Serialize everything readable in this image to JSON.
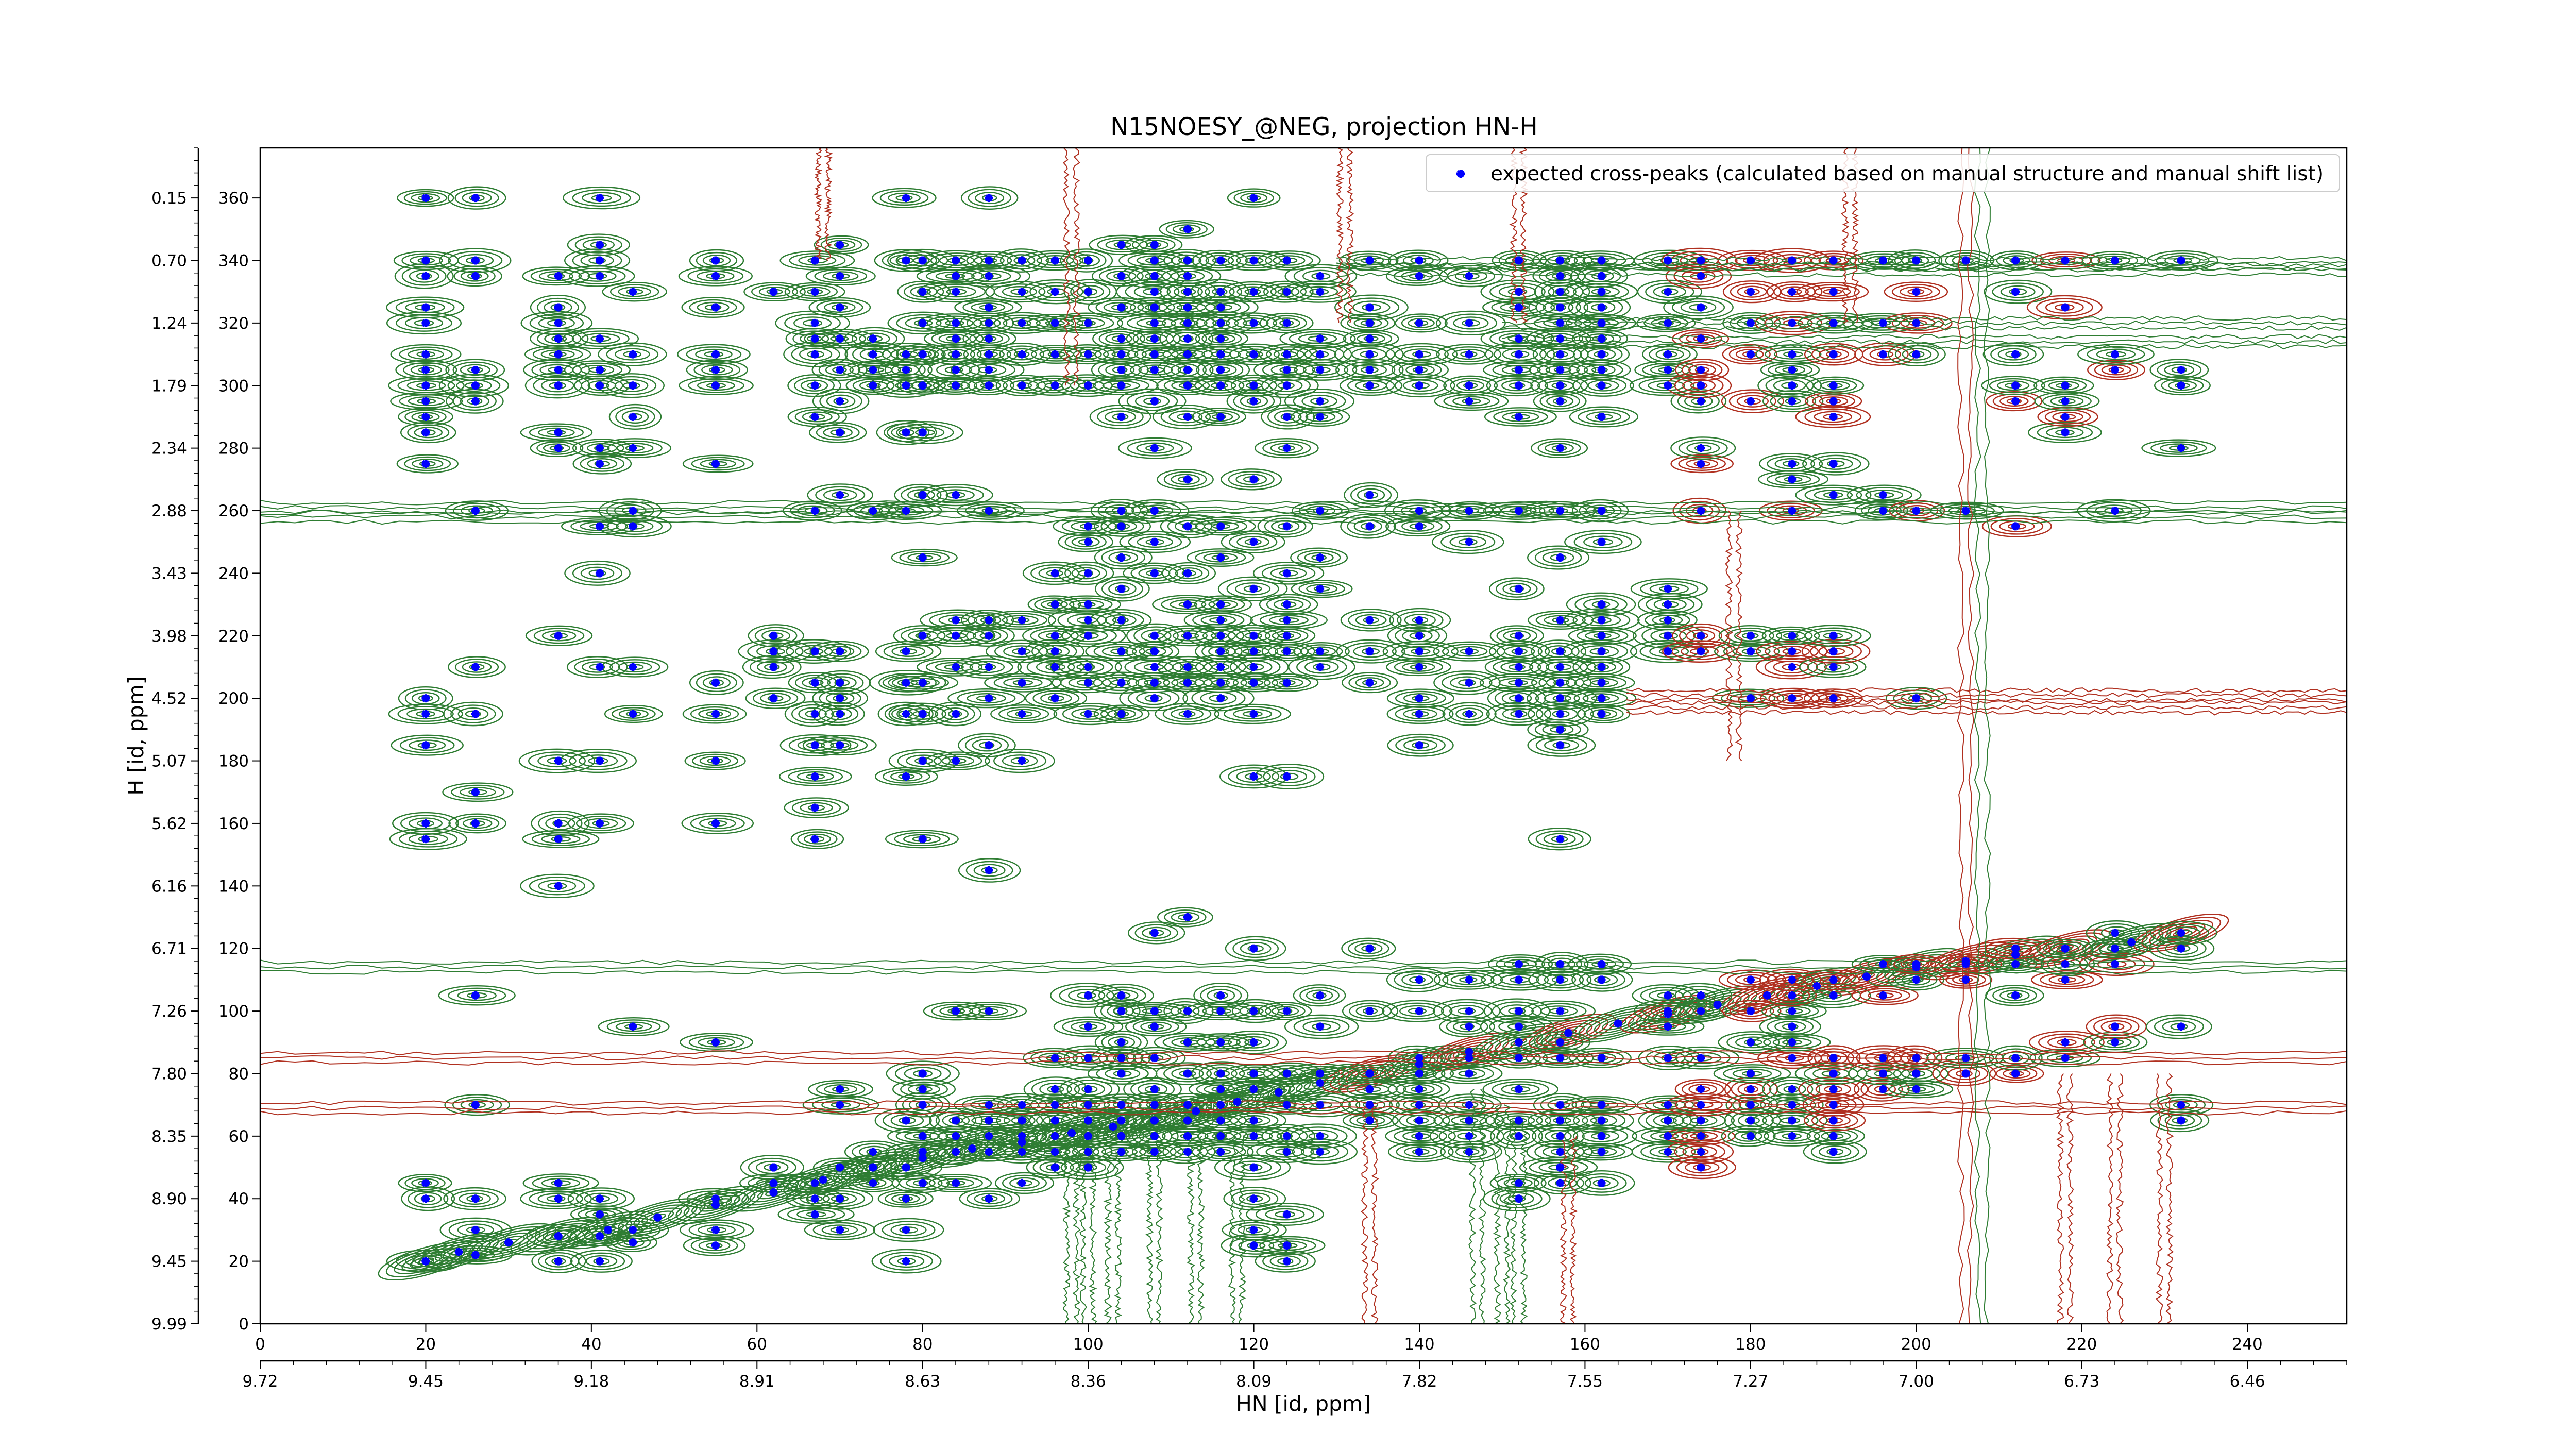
{
  "chart_data": {
    "type": "scatter",
    "title": "N15NOESY_@NEG, projection HN-H",
    "xlabel": "HN [id, ppm]",
    "ylabel": "H [id, ppm]",
    "x_index_ticks": [
      "0",
      "20",
      "40",
      "60",
      "80",
      "100",
      "120",
      "140",
      "160",
      "180",
      "200",
      "220",
      "240"
    ],
    "x_ppm_ticks": [
      "9.72",
      "9.45",
      "9.18",
      "8.91",
      "8.63",
      "8.36",
      "8.09",
      "7.82",
      "7.55",
      "7.27",
      "7.00",
      "6.73",
      "6.46"
    ],
    "y_index_ticks": [
      "0",
      "20",
      "40",
      "60",
      "80",
      "100",
      "120",
      "140",
      "160",
      "180",
      "200",
      "220",
      "240",
      "260",
      "280",
      "300",
      "320",
      "340",
      "360"
    ],
    "y_ppm_ticks": [
      "9.99",
      "9.45",
      "8.90",
      "8.35",
      "7.80",
      "7.26",
      "6.71",
      "6.16",
      "5.62",
      "5.07",
      "4.52",
      "3.98",
      "3.43",
      "2.88",
      "2.34",
      "1.79",
      "1.24",
      "0.70",
      "0.15"
    ],
    "xlim": [
      0,
      252
    ],
    "ylim": [
      0,
      376
    ],
    "legend": {
      "label": "expected cross-peaks (calculated based on manual structure and manual shift list)",
      "placement": "top-right",
      "marker_color": "#0000ff"
    },
    "colors": {
      "positive_contours": "#2e7d32",
      "negative_contours": "#b03020",
      "peaks": "#0000ff"
    },
    "diagonal_peaks": [
      [
        20,
        20
      ],
      [
        24,
        23
      ],
      [
        30,
        26
      ],
      [
        36,
        28
      ],
      [
        42,
        30
      ],
      [
        48,
        34
      ],
      [
        55,
        38
      ],
      [
        62,
        42
      ],
      [
        68,
        46
      ],
      [
        74,
        50
      ],
      [
        80,
        53
      ],
      [
        86,
        56
      ],
      [
        92,
        58
      ],
      [
        98,
        61
      ],
      [
        103,
        63
      ],
      [
        108,
        65
      ],
      [
        113,
        68
      ],
      [
        118,
        71
      ],
      [
        123,
        74
      ],
      [
        128,
        77
      ],
      [
        134,
        80
      ],
      [
        140,
        83
      ],
      [
        146,
        87
      ],
      [
        152,
        90
      ],
      [
        158,
        93
      ],
      [
        164,
        96
      ],
      [
        170,
        99
      ],
      [
        176,
        102
      ],
      [
        182,
        105
      ],
      [
        188,
        108
      ],
      [
        194,
        111
      ],
      [
        200,
        114
      ],
      [
        206,
        116
      ],
      [
        212,
        118
      ],
      [
        218,
        120
      ],
      [
        226,
        122
      ],
      [
        232,
        125
      ]
    ],
    "columns": [
      {
        "x": 20,
        "y": [
          20,
          40,
          45,
          155,
          160,
          185,
          195,
          200,
          275,
          285,
          290,
          295,
          300,
          305,
          310,
          320,
          325,
          335,
          340,
          360
        ]
      },
      {
        "x": 26,
        "y": [
          22,
          30,
          40,
          70,
          105,
          160,
          170,
          195,
          210,
          260,
          295,
          300,
          305,
          335,
          340,
          360
        ]
      },
      {
        "x": 36,
        "y": [
          20,
          28,
          40,
          45,
          140,
          155,
          160,
          180,
          220,
          280,
          285,
          300,
          305,
          310,
          315,
          320,
          325,
          335
        ]
      },
      {
        "x": 41,
        "y": [
          20,
          28,
          35,
          40,
          160,
          180,
          210,
          240,
          255,
          275,
          280,
          300,
          305,
          315,
          335,
          340,
          345,
          360
        ]
      },
      {
        "x": 45,
        "y": [
          26,
          30,
          95,
          195,
          210,
          255,
          260,
          280,
          290,
          300,
          310,
          330
        ]
      },
      {
        "x": 55,
        "y": [
          25,
          30,
          40,
          90,
          160,
          180,
          195,
          205,
          275,
          300,
          305,
          310,
          325,
          335,
          340
        ]
      },
      {
        "x": 62,
        "y": [
          45,
          50,
          200,
          210,
          215,
          220,
          330
        ]
      },
      {
        "x": 67,
        "y": [
          35,
          40,
          45,
          155,
          165,
          175,
          185,
          195,
          205,
          215,
          260,
          290,
          300,
          310,
          315,
          320,
          330,
          340
        ]
      },
      {
        "x": 70,
        "y": [
          30,
          40,
          50,
          70,
          75,
          185,
          195,
          200,
          205,
          215,
          265,
          285,
          295,
          305,
          315,
          325,
          335,
          345
        ]
      },
      {
        "x": 74,
        "y": [
          45,
          50,
          55,
          260,
          300,
          305,
          310,
          315
        ]
      },
      {
        "x": 78,
        "y": [
          20,
          30,
          40,
          50,
          65,
          175,
          195,
          205,
          215,
          260,
          285,
          300,
          305,
          310,
          340,
          360
        ]
      },
      {
        "x": 80,
        "y": [
          45,
          55,
          60,
          70,
          75,
          80,
          155,
          180,
          195,
          205,
          220,
          245,
          265,
          285,
          300,
          310,
          320,
          330,
          340
        ]
      },
      {
        "x": 84,
        "y": [
          45,
          55,
          60,
          65,
          100,
          180,
          195,
          210,
          220,
          225,
          265,
          300,
          305,
          310,
          315,
          320,
          330,
          335,
          340
        ]
      },
      {
        "x": 88,
        "y": [
          40,
          55,
          60,
          65,
          70,
          100,
          145,
          185,
          200,
          210,
          220,
          225,
          260,
          300,
          305,
          310,
          315,
          320,
          325,
          335,
          340,
          360
        ]
      },
      {
        "x": 92,
        "y": [
          45,
          55,
          60,
          65,
          70,
          180,
          195,
          205,
          215,
          225,
          300,
          310,
          320,
          330,
          340
        ]
      },
      {
        "x": 96,
        "y": [
          50,
          55,
          60,
          65,
          70,
          75,
          85,
          200,
          210,
          215,
          220,
          230,
          240,
          300,
          310,
          320,
          330,
          340
        ]
      },
      {
        "x": 100,
        "y": [
          50,
          55,
          60,
          65,
          70,
          75,
          85,
          95,
          105,
          195,
          205,
          210,
          220,
          225,
          230,
          240,
          250,
          255,
          300,
          310,
          320,
          330,
          340
        ]
      },
      {
        "x": 104,
        "y": [
          55,
          60,
          65,
          70,
          80,
          85,
          90,
          100,
          105,
          195,
          205,
          215,
          225,
          235,
          245,
          255,
          260,
          290,
          300,
          305,
          310,
          315,
          325,
          335,
          345
        ]
      },
      {
        "x": 108,
        "y": [
          55,
          60,
          65,
          70,
          75,
          85,
          95,
          100,
          125,
          200,
          205,
          210,
          215,
          220,
          240,
          250,
          260,
          280,
          295,
          305,
          310,
          315,
          320,
          325,
          330,
          335,
          340,
          345
        ]
      },
      {
        "x": 112,
        "y": [
          55,
          60,
          65,
          70,
          80,
          90,
          100,
          130,
          195,
          205,
          210,
          220,
          230,
          240,
          255,
          270,
          290,
          300,
          305,
          310,
          315,
          320,
          325,
          330,
          335,
          340,
          350
        ]
      },
      {
        "x": 116,
        "y": [
          55,
          60,
          65,
          70,
          75,
          80,
          90,
          100,
          105,
          200,
          205,
          210,
          215,
          220,
          225,
          230,
          245,
          255,
          290,
          300,
          305,
          310,
          315,
          320,
          325,
          330,
          340
        ]
      },
      {
        "x": 120,
        "y": [
          25,
          30,
          40,
          50,
          60,
          65,
          75,
          80,
          90,
          100,
          120,
          175,
          195,
          205,
          210,
          215,
          220,
          235,
          250,
          270,
          295,
          300,
          310,
          320,
          330,
          340,
          360
        ]
      },
      {
        "x": 124,
        "y": [
          20,
          25,
          35,
          55,
          60,
          70,
          80,
          100,
          175,
          205,
          215,
          220,
          225,
          230,
          240,
          255,
          280,
          290,
          300,
          305,
          310,
          320,
          330,
          340
        ]
      },
      {
        "x": 128,
        "y": [
          55,
          60,
          70,
          80,
          95,
          105,
          210,
          215,
          235,
          245,
          260,
          290,
          295,
          305,
          310,
          315,
          330,
          335
        ]
      },
      {
        "x": 134,
        "y": [
          65,
          70,
          75,
          80,
          100,
          120,
          205,
          215,
          225,
          255,
          265,
          300,
          305,
          310,
          315,
          320,
          325,
          340
        ]
      },
      {
        "x": 140,
        "y": [
          55,
          60,
          65,
          70,
          75,
          80,
          85,
          100,
          110,
          185,
          195,
          200,
          210,
          215,
          220,
          225,
          255,
          260,
          300,
          305,
          310,
          320,
          335,
          340
        ]
      },
      {
        "x": 146,
        "y": [
          55,
          60,
          65,
          70,
          80,
          85,
          95,
          100,
          110,
          195,
          205,
          215,
          250,
          260,
          295,
          300,
          310,
          320,
          335
        ]
      },
      {
        "x": 152,
        "y": [
          40,
          45,
          60,
          65,
          75,
          85,
          95,
          100,
          110,
          115,
          195,
          200,
          205,
          210,
          215,
          220,
          235,
          260,
          290,
          300,
          305,
          310,
          315,
          325,
          330,
          340
        ]
      },
      {
        "x": 157,
        "y": [
          45,
          50,
          55,
          60,
          65,
          70,
          85,
          90,
          100,
          110,
          115,
          155,
          185,
          190,
          195,
          200,
          205,
          210,
          215,
          225,
          245,
          260,
          280,
          295,
          300,
          305,
          310,
          315,
          320,
          325,
          330,
          335,
          340
        ]
      },
      {
        "x": 162,
        "y": [
          45,
          55,
          60,
          65,
          70,
          85,
          110,
          115,
          195,
          200,
          205,
          210,
          215,
          220,
          225,
          230,
          250,
          260,
          290,
          300,
          305,
          310,
          315,
          320,
          325,
          330,
          335,
          340
        ]
      },
      {
        "x": 170,
        "y": [
          55,
          60,
          65,
          70,
          85,
          95,
          100,
          105,
          215,
          220,
          225,
          230,
          235,
          300,
          305,
          310,
          320,
          330,
          340
        ]
      },
      {
        "x": 174,
        "y": [
          50,
          55,
          60,
          65,
          70,
          75,
          85,
          100,
          105,
          215,
          220,
          260,
          275,
          280,
          295,
          300,
          305,
          315,
          325,
          335,
          340
        ]
      },
      {
        "x": 180,
        "y": [
          60,
          65,
          70,
          75,
          80,
          90,
          100,
          110,
          200,
          215,
          220,
          295,
          310,
          320,
          330,
          340
        ]
      },
      {
        "x": 185,
        "y": [
          60,
          65,
          70,
          75,
          85,
          90,
          95,
          100,
          105,
          110,
          200,
          210,
          215,
          220,
          260,
          270,
          275,
          295,
          300,
          305,
          310,
          320,
          330,
          340
        ]
      },
      {
        "x": 190,
        "y": [
          55,
          60,
          65,
          70,
          75,
          80,
          85,
          105,
          110,
          200,
          210,
          215,
          220,
          265,
          275,
          290,
          295,
          300,
          310,
          320,
          330,
          340
        ]
      },
      {
        "x": 196,
        "y": [
          75,
          80,
          85,
          105,
          115,
          260,
          265,
          310,
          320,
          340
        ]
      },
      {
        "x": 200,
        "y": [
          75,
          80,
          85,
          110,
          115,
          200,
          260,
          310,
          320,
          330,
          340
        ]
      },
      {
        "x": 206,
        "y": [
          80,
          85,
          110,
          115,
          260,
          340
        ]
      },
      {
        "x": 212,
        "y": [
          80,
          85,
          105,
          115,
          120,
          255,
          295,
          300,
          310,
          330,
          340
        ]
      },
      {
        "x": 218,
        "y": [
          85,
          90,
          110,
          115,
          120,
          285,
          290,
          295,
          300,
          325,
          340
        ]
      },
      {
        "x": 224,
        "y": [
          90,
          95,
          115,
          120,
          125,
          260,
          305,
          310,
          340
        ]
      },
      {
        "x": 232,
        "y": [
          65,
          70,
          95,
          120,
          125,
          280,
          300,
          305,
          340
        ]
      }
    ]
  }
}
